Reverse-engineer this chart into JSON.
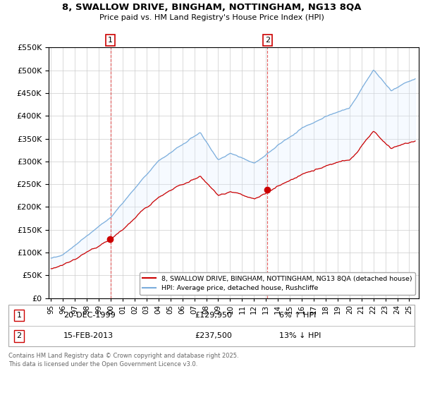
{
  "title_line1": "8, SWALLOW DRIVE, BINGHAM, NOTTINGHAM, NG13 8QA",
  "title_line2": "Price paid vs. HM Land Registry's House Price Index (HPI)",
  "background_color": "#ffffff",
  "plot_bg_color": "#ffffff",
  "grid_color": "#cccccc",
  "red_line_color": "#cc0000",
  "blue_line_color": "#7aaddc",
  "fill_color": "#ddeeff",
  "marker1_x": 1999.97,
  "marker1_label": "1",
  "marker1_price": 129950,
  "marker1_date": "20-DEC-1999",
  "marker1_hpi": "6% ↑ HPI",
  "marker2_x": 2013.12,
  "marker2_label": "2",
  "marker2_price": 237500,
  "marker2_date": "15-FEB-2013",
  "marker2_hpi": "13% ↓ HPI",
  "ylim_min": 0,
  "ylim_max": 550000,
  "xmin": 1994.8,
  "xmax": 2025.8,
  "legend_label_red": "8, SWALLOW DRIVE, BINGHAM, NOTTINGHAM, NG13 8QA (detached house)",
  "legend_label_blue": "HPI: Average price, detached house, Rushcliffe",
  "footer_line1": "Contains HM Land Registry data © Crown copyright and database right 2025.",
  "footer_line2": "This data is licensed under the Open Government Licence v3.0."
}
